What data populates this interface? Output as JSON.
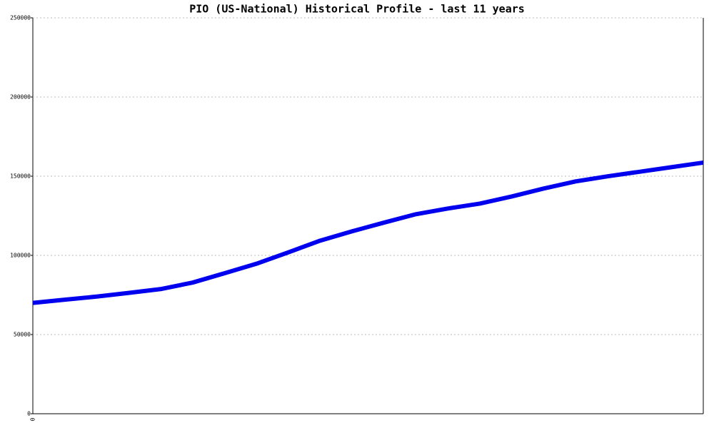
{
  "chart_data": {
    "type": "line",
    "title": "PIO (US-National) Historical Profile - last 11 years",
    "categories": [
      "0",
      null,
      null,
      null,
      null,
      null,
      null,
      null,
      null,
      null,
      null,
      null,
      null,
      null,
      null,
      null,
      null,
      null,
      null,
      null,
      null,
      null
    ],
    "series": [
      {
        "color": "#0000ee",
        "values": [
          70000,
          72000,
          74000,
          76300,
          78700,
          82800,
          88700,
          94700,
          101900,
          109300,
          115200,
          120700,
          126000,
          129600,
          132700,
          137200,
          142200,
          146700,
          149900,
          152800,
          155700,
          158600
        ]
      }
    ],
    "ylim": [
      0,
      250000
    ],
    "yticks": [
      0,
      50000,
      100000,
      150000,
      200000,
      250000
    ],
    "grid": true
  }
}
